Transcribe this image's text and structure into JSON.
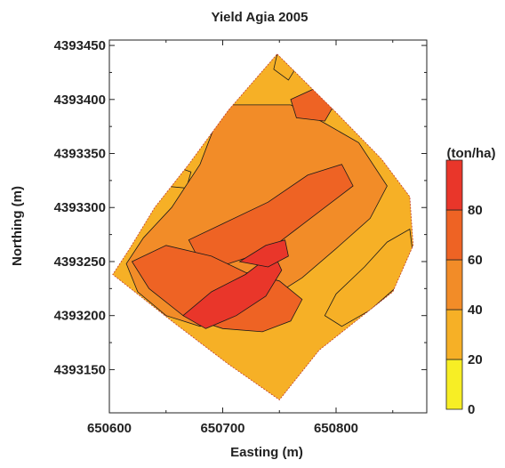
{
  "chart_data": {
    "type": "heatmap",
    "title": "Yield Agia 2005",
    "xlabel": "Easting (m)",
    "ylabel": "Northing (m)",
    "xlim": [
      650600,
      650880
    ],
    "ylim": [
      4393110,
      4393455
    ],
    "x_ticks": [
      650600,
      650700,
      650800
    ],
    "y_ticks": [
      4393150,
      4393200,
      4393250,
      4393300,
      4393350,
      4393400,
      4393450
    ],
    "colorbar": {
      "label": "(ton/ha)",
      "levels": [
        0,
        20,
        40,
        60,
        80,
        100
      ],
      "tick_labels": [
        "0",
        "20",
        "40",
        "60",
        "80"
      ],
      "colors": [
        "#f7ee25",
        "#f6b026",
        "#f28c28",
        "#ee6324",
        "#e9362a"
      ]
    },
    "field_boundary": [
      [
        650748,
        4393442
      ],
      [
        650800,
        4393388
      ],
      [
        650840,
        4393345
      ],
      [
        650865,
        4393310
      ],
      [
        650868,
        4393265
      ],
      [
        650850,
        4393222
      ],
      [
        650785,
        4393168
      ],
      [
        650750,
        4393122
      ],
      [
        650705,
        4393155
      ],
      [
        650655,
        4393195
      ],
      [
        650603,
        4393238
      ],
      [
        650618,
        4393262
      ],
      [
        650640,
        4393300
      ],
      [
        650670,
        4393340
      ],
      [
        650705,
        4393390
      ]
    ],
    "zones": [
      {
        "class": 1,
        "polygon": [
          [
            650748,
            4393442
          ],
          [
            650765,
            4393430
          ],
          [
            650758,
            4393418
          ],
          [
            650745,
            4393428
          ]
        ]
      },
      {
        "class": 1,
        "polygon": [
          [
            650653,
            4393340
          ],
          [
            650672,
            4393333
          ],
          [
            650668,
            4393318
          ],
          [
            650648,
            4393320
          ],
          [
            650640,
            4393330
          ]
        ]
      },
      {
        "class": 1,
        "polygon": [
          [
            650865,
            4393280
          ],
          [
            650868,
            4393255
          ],
          [
            650855,
            4393228
          ],
          [
            650830,
            4393205
          ],
          [
            650805,
            4393190
          ],
          [
            650790,
            4393200
          ],
          [
            650800,
            4393220
          ],
          [
            650825,
            4393245
          ],
          [
            650845,
            4393268
          ]
        ]
      },
      {
        "class": 2,
        "polygon": [
          [
            650700,
            4393395
          ],
          [
            650760,
            4393395
          ],
          [
            650790,
            4393378
          ],
          [
            650820,
            4393360
          ],
          [
            650845,
            4393320
          ],
          [
            650830,
            4393290
          ],
          [
            650800,
            4393262
          ],
          [
            650770,
            4393235
          ],
          [
            650740,
            4393215
          ],
          [
            650710,
            4393200
          ],
          [
            650680,
            4393190
          ],
          [
            650650,
            4393200
          ],
          [
            650625,
            4393222
          ],
          [
            650615,
            4393248
          ],
          [
            650630,
            4393272
          ],
          [
            650655,
            4393300
          ],
          [
            650680,
            4393340
          ]
        ]
      },
      {
        "class": 3,
        "polygon": [
          [
            650740,
            4393305
          ],
          [
            650775,
            4393330
          ],
          [
            650805,
            4393340
          ],
          [
            650815,
            4393320
          ],
          [
            650790,
            4393300
          ],
          [
            650765,
            4393280
          ],
          [
            650740,
            4393260
          ],
          [
            650705,
            4393248
          ],
          [
            650680,
            4393250
          ],
          [
            650670,
            4393270
          ],
          [
            650700,
            4393285
          ]
        ]
      },
      {
        "class": 3,
        "polygon": [
          [
            650620,
            4393250
          ],
          [
            650650,
            4393265
          ],
          [
            650690,
            4393255
          ],
          [
            650720,
            4393240
          ],
          [
            650750,
            4393232
          ],
          [
            650770,
            4393215
          ],
          [
            650760,
            4393195
          ],
          [
            650735,
            4393185
          ],
          [
            650700,
            4393188
          ],
          [
            650665,
            4393200
          ],
          [
            650635,
            4393225
          ]
        ]
      },
      {
        "class": 3,
        "polygon": [
          [
            650760,
            4393400
          ],
          [
            650785,
            4393412
          ],
          [
            650800,
            4393398
          ],
          [
            650790,
            4393380
          ],
          [
            650765,
            4393383
          ]
        ]
      },
      {
        "class": 4,
        "polygon": [
          [
            650665,
            4393200
          ],
          [
            650690,
            4393222
          ],
          [
            650720,
            4393238
          ],
          [
            650745,
            4393258
          ],
          [
            650752,
            4393242
          ],
          [
            650738,
            4393218
          ],
          [
            650712,
            4393200
          ],
          [
            650685,
            4393188
          ]
        ]
      },
      {
        "class": 4,
        "polygon": [
          [
            650715,
            4393250
          ],
          [
            650738,
            4393265
          ],
          [
            650755,
            4393270
          ],
          [
            650758,
            4393255
          ],
          [
            650740,
            4393245
          ]
        ]
      }
    ],
    "grid": false,
    "legend_position": "right"
  }
}
